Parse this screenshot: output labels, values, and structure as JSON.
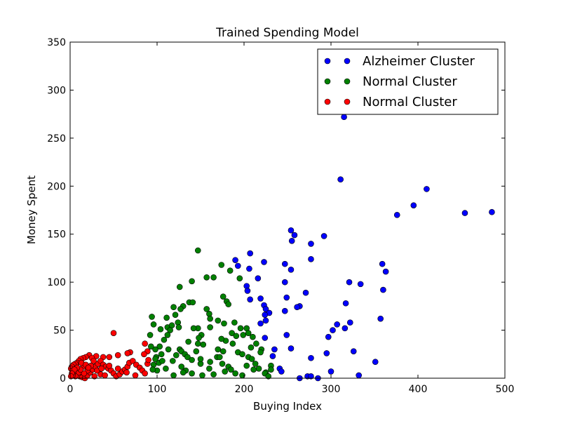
{
  "chart_data": {
    "type": "scatter",
    "title": "Trained Spending Model",
    "xlabel": "Buying Index",
    "ylabel": "Money Spent",
    "xlim": [
      0,
      500
    ],
    "ylim": [
      0,
      350
    ],
    "xticks": [
      0,
      100,
      200,
      300,
      400,
      500
    ],
    "yticks": [
      0,
      50,
      100,
      150,
      200,
      250,
      300,
      350
    ],
    "grid": false,
    "legend_position": "top-right",
    "series": [
      {
        "name": "Alzheimer Cluster",
        "color": "#0000ff",
        "points": [
          [
            315,
            272
          ],
          [
            311,
            207
          ],
          [
            410,
            197
          ],
          [
            395,
            180
          ],
          [
            376,
            170
          ],
          [
            454,
            172
          ],
          [
            485,
            173
          ],
          [
            254,
            154
          ],
          [
            258,
            149
          ],
          [
            255,
            143
          ],
          [
            277,
            140
          ],
          [
            292,
            148
          ],
          [
            207,
            130
          ],
          [
            277,
            124
          ],
          [
            223,
            121
          ],
          [
            190,
            123
          ],
          [
            193,
            117
          ],
          [
            206,
            114
          ],
          [
            247,
            119
          ],
          [
            254,
            113
          ],
          [
            216,
            104
          ],
          [
            247,
            100
          ],
          [
            359,
            119
          ],
          [
            363,
            111
          ],
          [
            321,
            100
          ],
          [
            334,
            98
          ],
          [
            360,
            92
          ],
          [
            203,
            96
          ],
          [
            204,
            91
          ],
          [
            271,
            89
          ],
          [
            219,
            83
          ],
          [
            207,
            82
          ],
          [
            249,
            84
          ],
          [
            317,
            78
          ],
          [
            223,
            76
          ],
          [
            225,
            72
          ],
          [
            264,
            75
          ],
          [
            261,
            74
          ],
          [
            247,
            70
          ],
          [
            229,
            68
          ],
          [
            224,
            66
          ],
          [
            225,
            60
          ],
          [
            219,
            57
          ],
          [
            357,
            62
          ],
          [
            322,
            58
          ],
          [
            307,
            56
          ],
          [
            316,
            52
          ],
          [
            302,
            50
          ],
          [
            297,
            43
          ],
          [
            249,
            45
          ],
          [
            224,
            42
          ],
          [
            235,
            30
          ],
          [
            254,
            31
          ],
          [
            326,
            28
          ],
          [
            295,
            26
          ],
          [
            233,
            23
          ],
          [
            277,
            21
          ],
          [
            241,
            10
          ],
          [
            243,
            7
          ],
          [
            300,
            7
          ],
          [
            351,
            17
          ],
          [
            332,
            3
          ],
          [
            273,
            2
          ],
          [
            277,
            2
          ],
          [
            264,
            0
          ],
          [
            285,
            0
          ]
        ]
      },
      {
        "name": "Normal Cluster",
        "color": "#008000",
        "points": [
          [
            147,
            133
          ],
          [
            174,
            118
          ],
          [
            184,
            112
          ],
          [
            157,
            105
          ],
          [
            165,
            105
          ],
          [
            195,
            104
          ],
          [
            140,
            101
          ],
          [
            126,
            95
          ],
          [
            176,
            85
          ],
          [
            180,
            80
          ],
          [
            182,
            77
          ],
          [
            137,
            79
          ],
          [
            141,
            79
          ],
          [
            130,
            75
          ],
          [
            119,
            74
          ],
          [
            127,
            72
          ],
          [
            111,
            63
          ],
          [
            121,
            66
          ],
          [
            124,
            58
          ],
          [
            125,
            53
          ],
          [
            94,
            64
          ],
          [
            96,
            56
          ],
          [
            104,
            51
          ],
          [
            112,
            53
          ],
          [
            117,
            55
          ],
          [
            157,
            72
          ],
          [
            160,
            67
          ],
          [
            161,
            62
          ],
          [
            170,
            60
          ],
          [
            177,
            57
          ],
          [
            189,
            58
          ],
          [
            196,
            52
          ],
          [
            186,
            47
          ],
          [
            203,
            52
          ],
          [
            199,
            45
          ],
          [
            205,
            47
          ],
          [
            210,
            43
          ],
          [
            214,
            36
          ],
          [
            220,
            30
          ],
          [
            208,
            32
          ],
          [
            191,
            44
          ],
          [
            179,
            39
          ],
          [
            174,
            41
          ],
          [
            161,
            53
          ],
          [
            151,
            45
          ],
          [
            147,
            52
          ],
          [
            142,
            52
          ],
          [
            148,
            42
          ],
          [
            153,
            35
          ],
          [
            147,
            36
          ],
          [
            136,
            38
          ],
          [
            126,
            30
          ],
          [
            128,
            28
          ],
          [
            132,
            25
          ],
          [
            135,
            22
          ],
          [
            140,
            19
          ],
          [
            145,
            28
          ],
          [
            150,
            15
          ],
          [
            161,
            17
          ],
          [
            169,
            22
          ],
          [
            172,
            22
          ],
          [
            175,
            15
          ],
          [
            182,
            12
          ],
          [
            193,
            27
          ],
          [
            198,
            25
          ],
          [
            205,
            22
          ],
          [
            209,
            20
          ],
          [
            213,
            15
          ],
          [
            217,
            10
          ],
          [
            225,
            6
          ],
          [
            231,
            13
          ],
          [
            115,
            50
          ],
          [
            112,
            45
          ],
          [
            108,
            40
          ],
          [
            103,
            33
          ],
          [
            98,
            30
          ],
          [
            92,
            45
          ],
          [
            93,
            33
          ],
          [
            105,
            25
          ],
          [
            99,
            22
          ],
          [
            102,
            16
          ],
          [
            96,
            14
          ],
          [
            100,
            8
          ],
          [
            110,
            10
          ],
          [
            118,
            18
          ],
          [
            122,
            24
          ],
          [
            113,
            30
          ],
          [
            128,
            12
          ],
          [
            133,
            8
          ],
          [
            140,
            5
          ],
          [
            152,
            3
          ],
          [
            165,
            4
          ],
          [
            178,
            7
          ],
          [
            185,
            9
          ],
          [
            190,
            5
          ],
          [
            198,
            3
          ],
          [
            203,
            13
          ],
          [
            211,
            9
          ],
          [
            219,
            27
          ],
          [
            224,
            5
          ],
          [
            228,
            2
          ],
          [
            231,
            9
          ],
          [
            119,
            3
          ],
          [
            130,
            6
          ],
          [
            106,
            18
          ],
          [
            98,
            20
          ],
          [
            95,
            9
          ],
          [
            150,
            20
          ],
          [
            160,
            10
          ],
          [
            170,
            30
          ],
          [
            176,
            28
          ],
          [
            187,
            36
          ]
        ]
      },
      {
        "name": "Normal Cluster",
        "color": "#ff0000",
        "points": [
          [
            50,
            47
          ],
          [
            86,
            36
          ],
          [
            89,
            28
          ],
          [
            69,
            27
          ],
          [
            66,
            26
          ],
          [
            85,
            25
          ],
          [
            55,
            24
          ],
          [
            45,
            22
          ],
          [
            38,
            22
          ],
          [
            30,
            23
          ],
          [
            22,
            24
          ],
          [
            25,
            21
          ],
          [
            18,
            22
          ],
          [
            15,
            21
          ],
          [
            12,
            20
          ],
          [
            10,
            18
          ],
          [
            8,
            16
          ],
          [
            6,
            15
          ],
          [
            4,
            14
          ],
          [
            2,
            12
          ],
          [
            1,
            10
          ],
          [
            3,
            8
          ],
          [
            5,
            6
          ],
          [
            7,
            4
          ],
          [
            9,
            3
          ],
          [
            11,
            2
          ],
          [
            14,
            1
          ],
          [
            17,
            0
          ],
          [
            20,
            3
          ],
          [
            23,
            6
          ],
          [
            26,
            9
          ],
          [
            29,
            12
          ],
          [
            32,
            15
          ],
          [
            35,
            18
          ],
          [
            38,
            14
          ],
          [
            41,
            12
          ],
          [
            44,
            10
          ],
          [
            47,
            8
          ],
          [
            50,
            5
          ],
          [
            53,
            2
          ],
          [
            57,
            4
          ],
          [
            60,
            7
          ],
          [
            63,
            9
          ],
          [
            66,
            12
          ],
          [
            68,
            16
          ],
          [
            72,
            18
          ],
          [
            76,
            14
          ],
          [
            80,
            11
          ],
          [
            83,
            8
          ],
          [
            86,
            5
          ],
          [
            89,
            15
          ],
          [
            90,
            19
          ],
          [
            75,
            3
          ],
          [
            65,
            6
          ],
          [
            55,
            10
          ],
          [
            45,
            13
          ],
          [
            35,
            4
          ],
          [
            28,
            2
          ],
          [
            20,
            8
          ],
          [
            15,
            12
          ],
          [
            10,
            6
          ],
          [
            6,
            2
          ],
          [
            3,
            3
          ],
          [
            13,
            16
          ],
          [
            18,
            14
          ],
          [
            24,
            13
          ],
          [
            27,
            18
          ],
          [
            31,
            8
          ],
          [
            36,
            10
          ],
          [
            40,
            3
          ],
          [
            16,
            5
          ],
          [
            21,
            11
          ],
          [
            12,
            9
          ],
          [
            8,
            11
          ],
          [
            5,
            9
          ],
          [
            2,
            5
          ],
          [
            1,
            2
          ]
        ]
      }
    ]
  }
}
